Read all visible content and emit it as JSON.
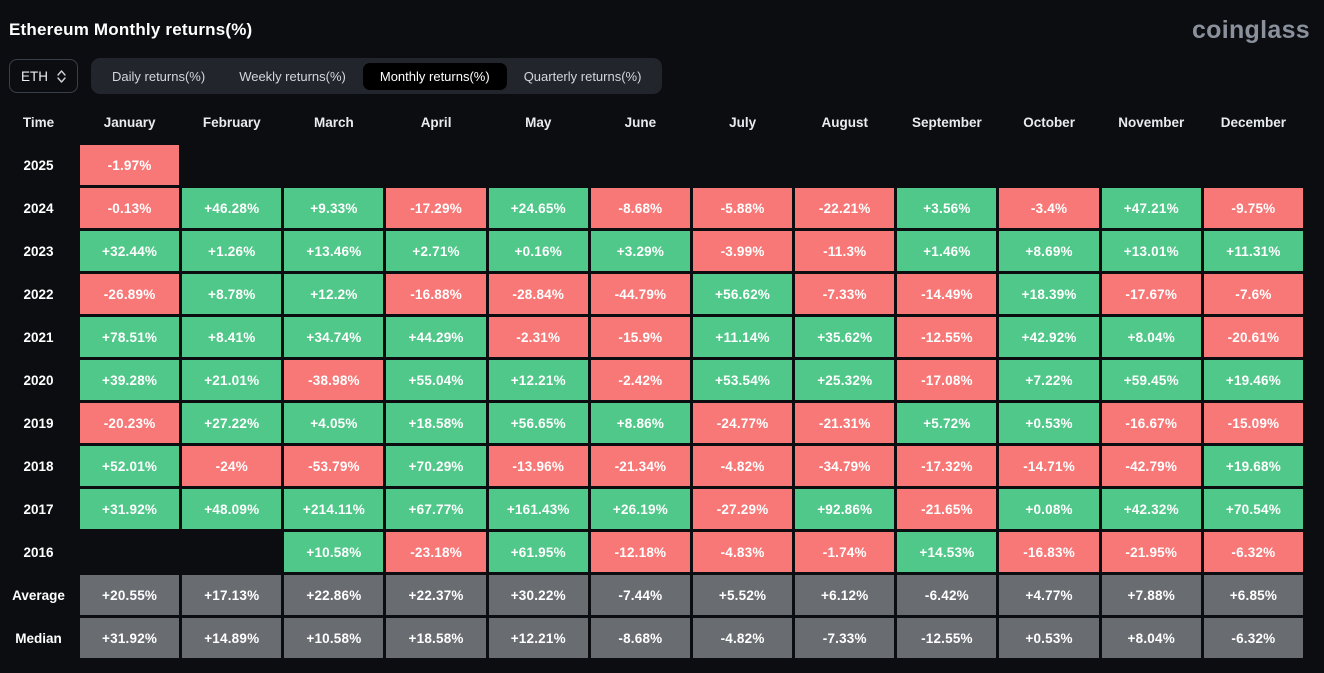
{
  "header": {
    "title": "Ethereum Monthly returns(%)",
    "logo": "coinglass"
  },
  "controls": {
    "symbol_select": {
      "value": "ETH",
      "icon": "updown-chevron-icon"
    },
    "tabs": [
      {
        "label": "Daily returns(%)",
        "active": false
      },
      {
        "label": "Weekly returns(%)",
        "active": false
      },
      {
        "label": "Monthly returns(%)",
        "active": true
      },
      {
        "label": "Quarterly returns(%)",
        "active": false
      }
    ]
  },
  "colors": {
    "pos": "#50c88a",
    "neg": "#f87878",
    "neu": "#696c71",
    "background": "#0b0d11",
    "tabs_bg": "#22252c",
    "tab_active_bg": "#000000"
  },
  "table": {
    "columns": [
      "Time",
      "January",
      "February",
      "March",
      "April",
      "May",
      "June",
      "July",
      "August",
      "September",
      "October",
      "November",
      "December"
    ],
    "rows": [
      {
        "label": "2025",
        "cells": [
          {
            "v": "-1.97%",
            "c": "neg"
          },
          null,
          null,
          null,
          null,
          null,
          null,
          null,
          null,
          null,
          null,
          null
        ]
      },
      {
        "label": "2024",
        "cells": [
          {
            "v": "-0.13%",
            "c": "neg"
          },
          {
            "v": "+46.28%",
            "c": "pos"
          },
          {
            "v": "+9.33%",
            "c": "pos"
          },
          {
            "v": "-17.29%",
            "c": "neg"
          },
          {
            "v": "+24.65%",
            "c": "pos"
          },
          {
            "v": "-8.68%",
            "c": "neg"
          },
          {
            "v": "-5.88%",
            "c": "neg"
          },
          {
            "v": "-22.21%",
            "c": "neg"
          },
          {
            "v": "+3.56%",
            "c": "pos"
          },
          {
            "v": "-3.4%",
            "c": "neg"
          },
          {
            "v": "+47.21%",
            "c": "pos"
          },
          {
            "v": "-9.75%",
            "c": "neg"
          }
        ]
      },
      {
        "label": "2023",
        "cells": [
          {
            "v": "+32.44%",
            "c": "pos"
          },
          {
            "v": "+1.26%",
            "c": "pos"
          },
          {
            "v": "+13.46%",
            "c": "pos"
          },
          {
            "v": "+2.71%",
            "c": "pos"
          },
          {
            "v": "+0.16%",
            "c": "pos"
          },
          {
            "v": "+3.29%",
            "c": "pos"
          },
          {
            "v": "-3.99%",
            "c": "neg"
          },
          {
            "v": "-11.3%",
            "c": "neg"
          },
          {
            "v": "+1.46%",
            "c": "pos"
          },
          {
            "v": "+8.69%",
            "c": "pos"
          },
          {
            "v": "+13.01%",
            "c": "pos"
          },
          {
            "v": "+11.31%",
            "c": "pos"
          }
        ]
      },
      {
        "label": "2022",
        "cells": [
          {
            "v": "-26.89%",
            "c": "neg"
          },
          {
            "v": "+8.78%",
            "c": "pos"
          },
          {
            "v": "+12.2%",
            "c": "pos"
          },
          {
            "v": "-16.88%",
            "c": "neg"
          },
          {
            "v": "-28.84%",
            "c": "neg"
          },
          {
            "v": "-44.79%",
            "c": "neg"
          },
          {
            "v": "+56.62%",
            "c": "pos"
          },
          {
            "v": "-7.33%",
            "c": "neg"
          },
          {
            "v": "-14.49%",
            "c": "neg"
          },
          {
            "v": "+18.39%",
            "c": "pos"
          },
          {
            "v": "-17.67%",
            "c": "neg"
          },
          {
            "v": "-7.6%",
            "c": "neg"
          }
        ]
      },
      {
        "label": "2021",
        "cells": [
          {
            "v": "+78.51%",
            "c": "pos"
          },
          {
            "v": "+8.41%",
            "c": "pos"
          },
          {
            "v": "+34.74%",
            "c": "pos"
          },
          {
            "v": "+44.29%",
            "c": "pos"
          },
          {
            "v": "-2.31%",
            "c": "neg"
          },
          {
            "v": "-15.9%",
            "c": "neg"
          },
          {
            "v": "+11.14%",
            "c": "pos"
          },
          {
            "v": "+35.62%",
            "c": "pos"
          },
          {
            "v": "-12.55%",
            "c": "neg"
          },
          {
            "v": "+42.92%",
            "c": "pos"
          },
          {
            "v": "+8.04%",
            "c": "pos"
          },
          {
            "v": "-20.61%",
            "c": "neg"
          }
        ]
      },
      {
        "label": "2020",
        "cells": [
          {
            "v": "+39.28%",
            "c": "pos"
          },
          {
            "v": "+21.01%",
            "c": "pos"
          },
          {
            "v": "-38.98%",
            "c": "neg"
          },
          {
            "v": "+55.04%",
            "c": "pos"
          },
          {
            "v": "+12.21%",
            "c": "pos"
          },
          {
            "v": "-2.42%",
            "c": "neg"
          },
          {
            "v": "+53.54%",
            "c": "pos"
          },
          {
            "v": "+25.32%",
            "c": "pos"
          },
          {
            "v": "-17.08%",
            "c": "neg"
          },
          {
            "v": "+7.22%",
            "c": "pos"
          },
          {
            "v": "+59.45%",
            "c": "pos"
          },
          {
            "v": "+19.46%",
            "c": "pos"
          }
        ]
      },
      {
        "label": "2019",
        "cells": [
          {
            "v": "-20.23%",
            "c": "neg"
          },
          {
            "v": "+27.22%",
            "c": "pos"
          },
          {
            "v": "+4.05%",
            "c": "pos"
          },
          {
            "v": "+18.58%",
            "c": "pos"
          },
          {
            "v": "+56.65%",
            "c": "pos"
          },
          {
            "v": "+8.86%",
            "c": "pos"
          },
          {
            "v": "-24.77%",
            "c": "neg"
          },
          {
            "v": "-21.31%",
            "c": "neg"
          },
          {
            "v": "+5.72%",
            "c": "pos"
          },
          {
            "v": "+0.53%",
            "c": "pos"
          },
          {
            "v": "-16.67%",
            "c": "neg"
          },
          {
            "v": "-15.09%",
            "c": "neg"
          }
        ]
      },
      {
        "label": "2018",
        "cells": [
          {
            "v": "+52.01%",
            "c": "pos"
          },
          {
            "v": "-24%",
            "c": "neg"
          },
          {
            "v": "-53.79%",
            "c": "neg"
          },
          {
            "v": "+70.29%",
            "c": "pos"
          },
          {
            "v": "-13.96%",
            "c": "neg"
          },
          {
            "v": "-21.34%",
            "c": "neg"
          },
          {
            "v": "-4.82%",
            "c": "neg"
          },
          {
            "v": "-34.79%",
            "c": "neg"
          },
          {
            "v": "-17.32%",
            "c": "neg"
          },
          {
            "v": "-14.71%",
            "c": "neg"
          },
          {
            "v": "-42.79%",
            "c": "neg"
          },
          {
            "v": "+19.68%",
            "c": "pos"
          }
        ]
      },
      {
        "label": "2017",
        "cells": [
          {
            "v": "+31.92%",
            "c": "pos"
          },
          {
            "v": "+48.09%",
            "c": "pos"
          },
          {
            "v": "+214.11%",
            "c": "pos"
          },
          {
            "v": "+67.77%",
            "c": "pos"
          },
          {
            "v": "+161.43%",
            "c": "pos"
          },
          {
            "v": "+26.19%",
            "c": "pos"
          },
          {
            "v": "-27.29%",
            "c": "neg"
          },
          {
            "v": "+92.86%",
            "c": "pos"
          },
          {
            "v": "-21.65%",
            "c": "neg"
          },
          {
            "v": "+0.08%",
            "c": "pos"
          },
          {
            "v": "+42.32%",
            "c": "pos"
          },
          {
            "v": "+70.54%",
            "c": "pos"
          }
        ]
      },
      {
        "label": "2016",
        "cells": [
          null,
          null,
          {
            "v": "+10.58%",
            "c": "pos"
          },
          {
            "v": "-23.18%",
            "c": "neg"
          },
          {
            "v": "+61.95%",
            "c": "pos"
          },
          {
            "v": "-12.18%",
            "c": "neg"
          },
          {
            "v": "-4.83%",
            "c": "neg"
          },
          {
            "v": "-1.74%",
            "c": "neg"
          },
          {
            "v": "+14.53%",
            "c": "pos"
          },
          {
            "v": "-16.83%",
            "c": "neg"
          },
          {
            "v": "-21.95%",
            "c": "neg"
          },
          {
            "v": "-6.32%",
            "c": "neg"
          }
        ]
      },
      {
        "label": "Average",
        "cells": [
          {
            "v": "+20.55%",
            "c": "neu"
          },
          {
            "v": "+17.13%",
            "c": "neu"
          },
          {
            "v": "+22.86%",
            "c": "neu"
          },
          {
            "v": "+22.37%",
            "c": "neu"
          },
          {
            "v": "+30.22%",
            "c": "neu"
          },
          {
            "v": "-7.44%",
            "c": "neu"
          },
          {
            "v": "+5.52%",
            "c": "neu"
          },
          {
            "v": "+6.12%",
            "c": "neu"
          },
          {
            "v": "-6.42%",
            "c": "neu"
          },
          {
            "v": "+4.77%",
            "c": "neu"
          },
          {
            "v": "+7.88%",
            "c": "neu"
          },
          {
            "v": "+6.85%",
            "c": "neu"
          }
        ]
      },
      {
        "label": "Median",
        "cells": [
          {
            "v": "+31.92%",
            "c": "neu"
          },
          {
            "v": "+14.89%",
            "c": "neu"
          },
          {
            "v": "+10.58%",
            "c": "neu"
          },
          {
            "v": "+18.58%",
            "c": "neu"
          },
          {
            "v": "+12.21%",
            "c": "neu"
          },
          {
            "v": "-8.68%",
            "c": "neu"
          },
          {
            "v": "-4.82%",
            "c": "neu"
          },
          {
            "v": "-7.33%",
            "c": "neu"
          },
          {
            "v": "-12.55%",
            "c": "neu"
          },
          {
            "v": "+0.53%",
            "c": "neu"
          },
          {
            "v": "+8.04%",
            "c": "neu"
          },
          {
            "v": "-6.32%",
            "c": "neu"
          }
        ]
      }
    ]
  }
}
